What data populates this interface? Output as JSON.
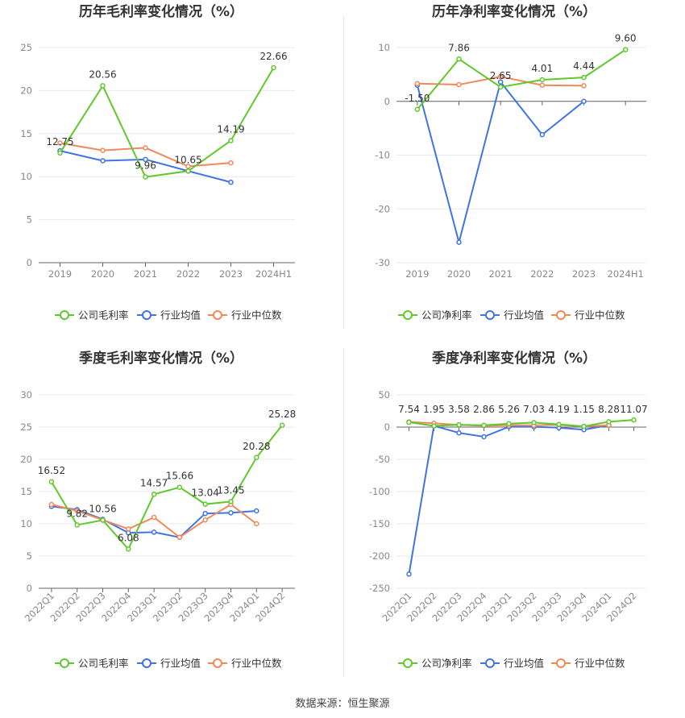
{
  "source_text": "数据来源：恒生聚源",
  "colors": {
    "company": "#5fc92c",
    "avg": "#3f74e1",
    "median": "#f0895a",
    "grid": "#e8e8ee",
    "axis": "#666666"
  },
  "chart_data": [
    {
      "type": "line",
      "title": "历年毛利率变化情况（%）",
      "categories": [
        "2019",
        "2020",
        "2021",
        "2022",
        "2023",
        "2024H1"
      ],
      "ylim": [
        0,
        25
      ],
      "yticks": [
        0,
        5,
        10,
        15,
        20,
        25
      ],
      "grid": true,
      "legend": "bottom",
      "series": [
        {
          "name": "公司毛利率",
          "key": "company",
          "values": [
            12.75,
            20.56,
            9.96,
            10.65,
            14.19,
            22.66
          ],
          "labels": [
            "12.75",
            "20.56",
            "9.96",
            "10.65",
            "14.19",
            "22.66"
          ]
        },
        {
          "name": "行业均值",
          "key": "avg",
          "values": [
            13.0,
            11.85,
            12.0,
            10.65,
            9.35,
            null
          ]
        },
        {
          "name": "行业中位数",
          "key": "median",
          "values": [
            13.9,
            13.05,
            13.35,
            11.2,
            11.6,
            null
          ]
        }
      ]
    },
    {
      "type": "line",
      "title": "历年净利率变化情况（%）",
      "categories": [
        "2019",
        "2020",
        "2021",
        "2022",
        "2023",
        "2024H1"
      ],
      "ylim": [
        -30,
        10
      ],
      "yticks": [
        -30,
        -20,
        -10,
        0,
        10
      ],
      "grid": true,
      "legend": "bottom",
      "series": [
        {
          "name": "公司净利率",
          "key": "company",
          "values": [
            -1.5,
            7.86,
            2.65,
            4.01,
            4.44,
            9.6
          ],
          "labels": [
            "-1.50",
            "7.86",
            "2.65",
            "4.01",
            "4.44",
            "9.60"
          ]
        },
        {
          "name": "行业均值",
          "key": "avg",
          "values": [
            3.0,
            -26.2,
            3.6,
            -6.2,
            0.0,
            null
          ]
        },
        {
          "name": "行业中位数",
          "key": "median",
          "values": [
            3.3,
            3.1,
            4.6,
            3.0,
            2.9,
            null
          ]
        }
      ]
    },
    {
      "type": "line",
      "title": "季度毛利率变化情况（%）",
      "categories": [
        "2022Q1",
        "2022Q2",
        "2022Q3",
        "2022Q4",
        "2023Q1",
        "2023Q2",
        "2023Q3",
        "2023Q4",
        "2024Q1",
        "2024Q2"
      ],
      "ylim": [
        0,
        30
      ],
      "yticks": [
        0,
        5,
        10,
        15,
        20,
        25,
        30
      ],
      "grid": true,
      "legend": "bottom",
      "series": [
        {
          "name": "公司毛利率",
          "key": "company",
          "values": [
            16.52,
            9.82,
            10.56,
            6.08,
            14.57,
            15.66,
            13.04,
            13.45,
            20.28,
            25.28
          ],
          "labels": [
            "16.52",
            "9.82",
            "10.56",
            "6.08",
            "14.57",
            "15.66",
            "13.04",
            "13.45",
            "20.28",
            "25.28"
          ]
        },
        {
          "name": "行业均值",
          "key": "avg",
          "values": [
            12.7,
            12.2,
            10.7,
            8.6,
            8.7,
            7.9,
            11.6,
            11.7,
            12.0,
            null
          ]
        },
        {
          "name": "行业中位数",
          "key": "median",
          "values": [
            13.0,
            12.0,
            10.6,
            9.2,
            11.0,
            7.9,
            10.6,
            13.0,
            10.0,
            null
          ]
        }
      ]
    },
    {
      "type": "line",
      "title": "季度净利率变化情况（%）",
      "categories": [
        "2022Q1",
        "2022Q2",
        "2022Q3",
        "2022Q4",
        "2023Q1",
        "2023Q2",
        "2023Q3",
        "2023Q4",
        "2024Q1",
        "2024Q2"
      ],
      "ylim": [
        -250,
        50
      ],
      "yticks": [
        -250,
        -200,
        -150,
        -100,
        -50,
        0,
        50
      ],
      "grid": true,
      "legend": "bottom",
      "series": [
        {
          "name": "公司净利率",
          "key": "company",
          "values": [
            7.54,
            1.95,
            3.58,
            2.86,
            5.26,
            7.03,
            4.19,
            1.15,
            8.28,
            11.07
          ],
          "labels": [
            "7.54",
            "1.95",
            "3.58",
            "2.86",
            "5.26",
            "7.03",
            "4.19",
            "1.15",
            "8.28",
            "11.07"
          ]
        },
        {
          "name": "行业均值",
          "key": "avg",
          "values": [
            -228,
            2.0,
            -9.0,
            -15.0,
            0.5,
            0.5,
            -1.0,
            -4.0,
            3.0,
            null
          ]
        },
        {
          "name": "行业中位数",
          "key": "median",
          "values": [
            8.0,
            6.0,
            3.5,
            2.0,
            3.0,
            2.8,
            3.5,
            1.0,
            3.0,
            null
          ]
        }
      ]
    }
  ]
}
